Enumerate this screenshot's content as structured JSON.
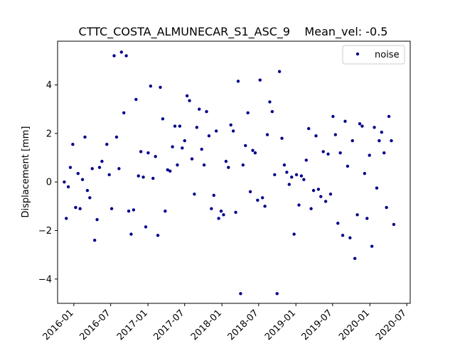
{
  "chart_data": {
    "type": "scatter",
    "title": "CTTC_COSTA_ALMUNECAR_S1_ASC_9    Mean_vel: -0.5",
    "xlabel": "",
    "ylabel": "Displacement [mm]",
    "x_axis": "date",
    "xlim": [
      "2015-10-13",
      "2020-07-18"
    ],
    "ylim": [
      -5.0,
      5.8
    ],
    "xticks": [
      "2016-01",
      "2016-07",
      "2017-01",
      "2017-07",
      "2018-01",
      "2018-07",
      "2019-01",
      "2019-07",
      "2020-01",
      "2020-07"
    ],
    "yticks": [
      -4,
      -2,
      0,
      2,
      4
    ],
    "grid": false,
    "legend": {
      "position": "top-right",
      "entries": [
        "noise"
      ]
    },
    "series": [
      {
        "name": "noise",
        "color": "#00008b",
        "points": [
          [
            "2015-11-15",
            0.0
          ],
          [
            "2015-11-25",
            -1.5
          ],
          [
            "2015-12-05",
            -0.2
          ],
          [
            "2015-12-15",
            0.6
          ],
          [
            "2015-12-27",
            1.55
          ],
          [
            "2016-01-10",
            -1.05
          ],
          [
            "2016-01-22",
            0.35
          ],
          [
            "2016-02-01",
            -1.1
          ],
          [
            "2016-02-13",
            0.1
          ],
          [
            "2016-02-25",
            1.85
          ],
          [
            "2016-03-08",
            -0.35
          ],
          [
            "2016-03-20",
            -0.65
          ],
          [
            "2016-04-01",
            0.55
          ],
          [
            "2016-04-13",
            -2.4
          ],
          [
            "2016-04-25",
            -1.55
          ],
          [
            "2016-05-07",
            0.6
          ],
          [
            "2016-05-19",
            0.85
          ],
          [
            "2016-06-12",
            1.55
          ],
          [
            "2016-06-24",
            0.3
          ],
          [
            "2016-07-06",
            -1.1
          ],
          [
            "2016-07-18",
            5.2
          ],
          [
            "2016-07-30",
            1.85
          ],
          [
            "2016-08-11",
            0.55
          ],
          [
            "2016-08-23",
            5.35
          ],
          [
            "2016-09-04",
            2.85
          ],
          [
            "2016-09-16",
            5.2
          ],
          [
            "2016-09-28",
            -1.2
          ],
          [
            "2016-10-10",
            -2.15
          ],
          [
            "2016-10-22",
            -1.15
          ],
          [
            "2016-11-03",
            3.4
          ],
          [
            "2016-11-15",
            0.25
          ],
          [
            "2016-11-27",
            1.25
          ],
          [
            "2016-12-09",
            0.2
          ],
          [
            "2016-12-21",
            -1.85
          ],
          [
            "2017-01-02",
            1.2
          ],
          [
            "2017-01-14",
            3.95
          ],
          [
            "2017-01-26",
            0.15
          ],
          [
            "2017-02-07",
            1.05
          ],
          [
            "2017-02-19",
            -2.2
          ],
          [
            "2017-03-03",
            3.9
          ],
          [
            "2017-03-15",
            2.6
          ],
          [
            "2017-03-27",
            -1.2
          ],
          [
            "2017-04-08",
            0.5
          ],
          [
            "2017-04-20",
            0.45
          ],
          [
            "2017-05-02",
            1.45
          ],
          [
            "2017-05-14",
            2.3
          ],
          [
            "2017-05-26",
            0.7
          ],
          [
            "2017-06-07",
            2.3
          ],
          [
            "2017-06-19",
            1.4
          ],
          [
            "2017-07-01",
            1.7
          ],
          [
            "2017-07-13",
            3.55
          ],
          [
            "2017-07-25",
            3.35
          ],
          [
            "2017-08-06",
            0.95
          ],
          [
            "2017-08-18",
            -0.5
          ],
          [
            "2017-08-30",
            2.25
          ],
          [
            "2017-09-11",
            3.0
          ],
          [
            "2017-09-23",
            1.35
          ],
          [
            "2017-10-05",
            0.7
          ],
          [
            "2017-10-17",
            2.9
          ],
          [
            "2017-10-29",
            1.9
          ],
          [
            "2017-11-10",
            -1.1
          ],
          [
            "2017-11-22",
            -0.55
          ],
          [
            "2017-12-04",
            2.1
          ],
          [
            "2017-12-16",
            -1.5
          ],
          [
            "2017-12-28",
            -1.2
          ],
          [
            "2018-01-09",
            -1.35
          ],
          [
            "2018-01-21",
            0.85
          ],
          [
            "2018-02-02",
            0.6
          ],
          [
            "2018-02-14",
            2.35
          ],
          [
            "2018-02-26",
            2.1
          ],
          [
            "2018-03-10",
            -1.25
          ],
          [
            "2018-03-22",
            4.15
          ],
          [
            "2018-04-03",
            -4.6
          ],
          [
            "2018-04-15",
            0.7
          ],
          [
            "2018-04-27",
            1.5
          ],
          [
            "2018-05-09",
            2.85
          ],
          [
            "2018-05-21",
            -0.4
          ],
          [
            "2018-06-02",
            1.3
          ],
          [
            "2018-06-14",
            1.2
          ],
          [
            "2018-06-26",
            -0.75
          ],
          [
            "2018-07-08",
            4.2
          ],
          [
            "2018-07-20",
            -0.65
          ],
          [
            "2018-08-01",
            -1.0
          ],
          [
            "2018-08-13",
            1.95
          ],
          [
            "2018-08-25",
            3.3
          ],
          [
            "2018-09-06",
            2.9
          ],
          [
            "2018-09-18",
            0.3
          ],
          [
            "2018-09-30",
            -4.6
          ],
          [
            "2018-10-12",
            4.55
          ],
          [
            "2018-10-24",
            1.8
          ],
          [
            "2018-11-05",
            0.7
          ],
          [
            "2018-11-17",
            0.4
          ],
          [
            "2018-11-29",
            -0.1
          ],
          [
            "2018-12-11",
            0.2
          ],
          [
            "2018-12-23",
            -2.15
          ],
          [
            "2019-01-04",
            0.3
          ],
          [
            "2019-01-16",
            -0.95
          ],
          [
            "2019-01-28",
            0.25
          ],
          [
            "2019-02-09",
            0.1
          ],
          [
            "2019-02-21",
            0.9
          ],
          [
            "2019-03-05",
            2.2
          ],
          [
            "2019-03-17",
            -1.1
          ],
          [
            "2019-03-29",
            -0.35
          ],
          [
            "2019-04-10",
            1.9
          ],
          [
            "2019-04-22",
            -0.3
          ],
          [
            "2019-05-04",
            -0.6
          ],
          [
            "2019-05-16",
            1.25
          ],
          [
            "2019-05-28",
            -0.8
          ],
          [
            "2019-06-09",
            1.15
          ],
          [
            "2019-06-21",
            -0.5
          ],
          [
            "2019-07-03",
            2.7
          ],
          [
            "2019-07-15",
            1.95
          ],
          [
            "2019-07-27",
            -1.7
          ],
          [
            "2019-08-08",
            1.2
          ],
          [
            "2019-08-20",
            -2.2
          ],
          [
            "2019-09-01",
            2.5
          ],
          [
            "2019-09-13",
            0.65
          ],
          [
            "2019-09-25",
            -2.3
          ],
          [
            "2019-10-07",
            1.7
          ],
          [
            "2019-10-19",
            -3.15
          ],
          [
            "2019-10-31",
            -1.35
          ],
          [
            "2019-11-12",
            2.4
          ],
          [
            "2019-11-24",
            2.3
          ],
          [
            "2019-12-06",
            0.35
          ],
          [
            "2019-12-18",
            -1.5
          ],
          [
            "2019-12-30",
            1.1
          ],
          [
            "2020-01-11",
            -2.65
          ],
          [
            "2020-01-23",
            2.25
          ],
          [
            "2020-02-04",
            -0.25
          ],
          [
            "2020-02-16",
            1.7
          ],
          [
            "2020-02-28",
            2.05
          ],
          [
            "2020-03-11",
            1.2
          ],
          [
            "2020-03-23",
            -1.05
          ],
          [
            "2020-04-04",
            2.7
          ],
          [
            "2020-04-16",
            1.7
          ],
          [
            "2020-04-28",
            -1.75
          ]
        ]
      }
    ]
  }
}
